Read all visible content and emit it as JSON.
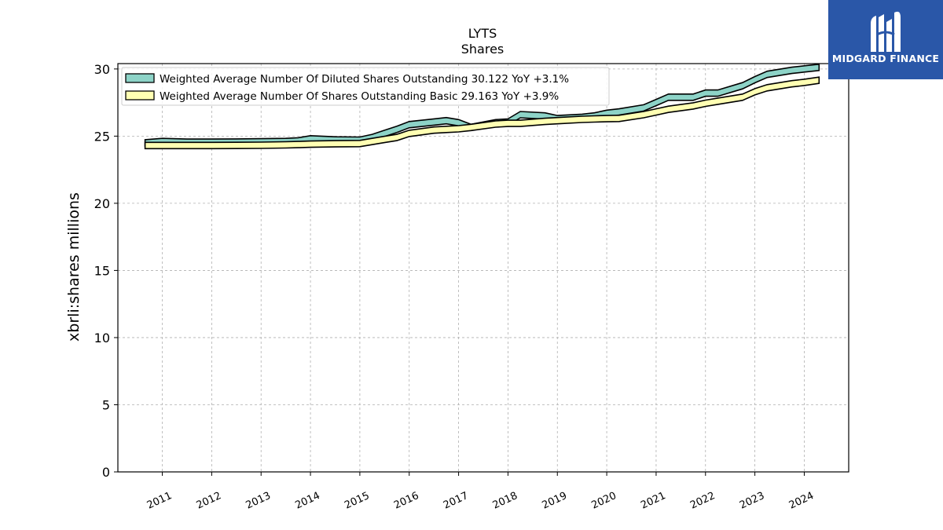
{
  "colors": {
    "diluted_fill": "#8dd3c7",
    "basic_fill": "#ffffb3",
    "logo_bg": "#2a57a8"
  },
  "logo": {
    "text": "MIDGARD FINANCE",
    "icon": "midgard-logo-icon"
  },
  "chart_data": {
    "type": "area",
    "title": "LYTS",
    "subtitle": "Shares",
    "ylabel": "xbrli:shares millions",
    "xlabel": "",
    "ylim": [
      0,
      30.4
    ],
    "xlim": [
      2010.1,
      2024.9
    ],
    "yticks": [
      "0",
      "5",
      "10",
      "15",
      "20",
      "25",
      "30"
    ],
    "xticks": [
      "2011",
      "2012",
      "2013",
      "2014",
      "2015",
      "2016",
      "2017",
      "2018",
      "2019",
      "2020",
      "2021",
      "2022",
      "2023",
      "2024"
    ],
    "grid": true,
    "legend_position": "top-left",
    "series": [
      {
        "name": "Weighted Average Number Of Diluted Shares Outstanding",
        "legend_label": "Weighted Average Number Of Diluted Shares Outstanding  30.122 YoY +3.1%",
        "x": [
          2010.65,
          2011.0,
          2011.5,
          2012.0,
          2012.5,
          2013.0,
          2013.5,
          2013.75,
          2014.0,
          2014.5,
          2015.0,
          2015.25,
          2015.5,
          2015.75,
          2016.0,
          2016.5,
          2016.75,
          2017.0,
          2017.25,
          2017.75,
          2018.0,
          2018.25,
          2018.75,
          2019.0,
          2019.5,
          2019.75,
          2020.0,
          2020.25,
          2020.75,
          2021.0,
          2021.25,
          2021.75,
          2022.0,
          2022.25,
          2022.75,
          2023.0,
          2023.25,
          2023.75,
          2024.0,
          2024.3
        ],
        "values": [
          24.5,
          24.6,
          24.55,
          24.55,
          24.56,
          24.58,
          24.6,
          24.65,
          24.8,
          24.72,
          24.7,
          24.9,
          25.2,
          25.5,
          25.85,
          26.05,
          26.15,
          26.0,
          25.65,
          26.0,
          26.05,
          26.6,
          26.5,
          26.3,
          26.4,
          26.5,
          26.7,
          26.8,
          27.1,
          27.5,
          27.9,
          27.9,
          28.2,
          28.2,
          28.75,
          29.2,
          29.6,
          29.9,
          30.0,
          30.122
        ]
      },
      {
        "name": "Weighted Average Number Of Shares Outstanding Basic",
        "legend_label": "Weighted Average Number Of Shares Outstanding Basic  29.163 YoY +3.9%",
        "x": [
          2010.65,
          2011.0,
          2011.5,
          2012.0,
          2012.5,
          2013.0,
          2013.5,
          2013.75,
          2014.0,
          2014.5,
          2015.0,
          2015.25,
          2015.5,
          2015.75,
          2016.0,
          2016.5,
          2016.75,
          2017.0,
          2017.25,
          2017.75,
          2018.0,
          2018.25,
          2018.75,
          2019.0,
          2019.5,
          2019.75,
          2020.0,
          2020.25,
          2020.75,
          2021.0,
          2021.25,
          2021.75,
          2022.0,
          2022.25,
          2022.75,
          2023.0,
          2023.25,
          2023.75,
          2024.0,
          2024.3
        ],
        "values": [
          24.3,
          24.3,
          24.3,
          24.3,
          24.31,
          24.32,
          24.35,
          24.37,
          24.4,
          24.43,
          24.45,
          24.6,
          24.75,
          24.9,
          25.2,
          25.45,
          25.5,
          25.55,
          25.65,
          25.9,
          25.95,
          25.95,
          26.1,
          26.15,
          26.25,
          26.28,
          26.3,
          26.32,
          26.6,
          26.8,
          27.0,
          27.25,
          27.45,
          27.6,
          27.9,
          28.3,
          28.6,
          28.9,
          29.0,
          29.163
        ]
      }
    ]
  }
}
